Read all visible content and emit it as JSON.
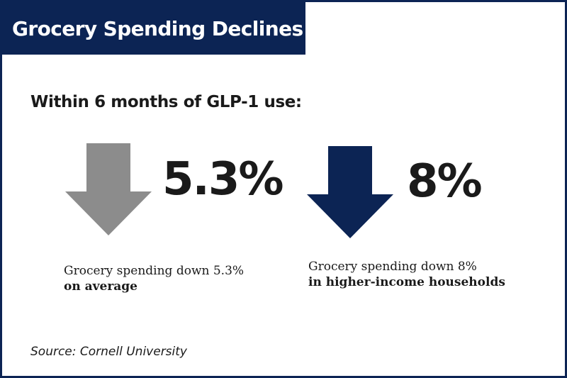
{
  "header": {
    "title": "Grocery Spending Declines"
  },
  "subtitle": "Within 6 months of GLP-1 use:",
  "stats": [
    {
      "value": "5.3%",
      "arrow_icon": "down-arrow-icon",
      "arrow_color": "#8c8c8c",
      "caption_line1": "Grocery spending down 5.3%",
      "caption_line2": "on average"
    },
    {
      "value": "8%",
      "arrow_icon": "down-arrow-icon",
      "arrow_color": "#0c2454",
      "caption_line1": "Grocery spending down 8%",
      "caption_line2": "in higher-income households"
    }
  ],
  "source": "Source: Cornell University",
  "colors": {
    "brand_navy": "#0c2454",
    "neutral_gray": "#8c8c8c",
    "text": "#1a1a1a"
  }
}
